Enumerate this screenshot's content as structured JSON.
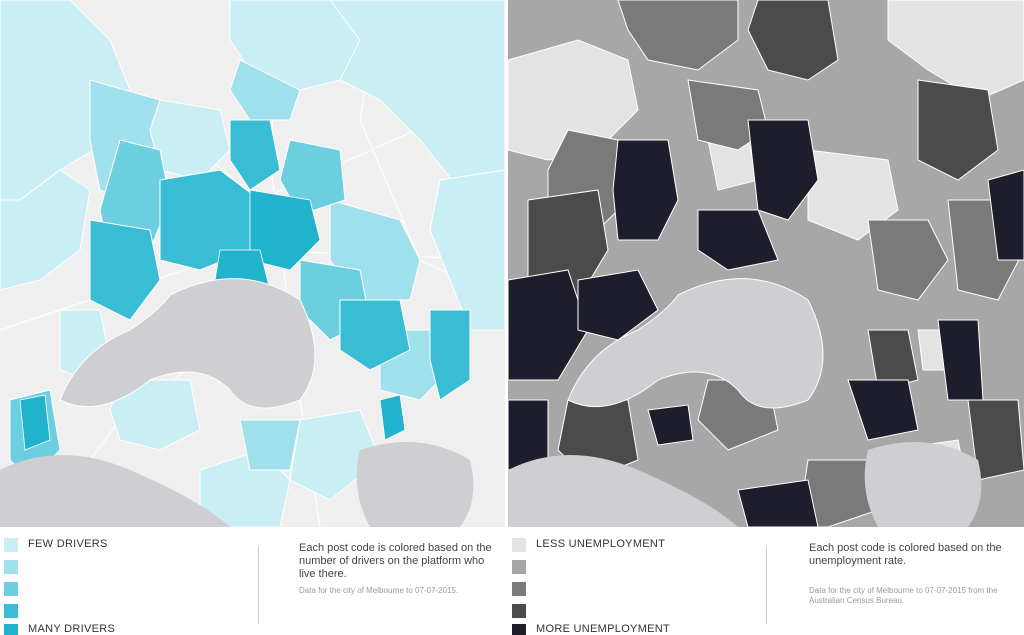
{
  "left_map": {
    "legend": {
      "low_label": "FEW DRIVERS",
      "high_label": "MANY DRIVERS",
      "colors": [
        "#c9eef4",
        "#9fe0ec",
        "#6ccfe0",
        "#38bdd4",
        "#21b3cc"
      ]
    },
    "description": "Each post code is colored based on the number of drivers on the platform who live there.",
    "source_note": "Data for the city of Melbourne to 07-07-2015."
  },
  "right_map": {
    "legend": {
      "low_label": "LESS UNEMPLOYMENT",
      "high_label": "MORE UNEMPLOYMENT",
      "colors": [
        "#e3e3e3",
        "#a7a7a7",
        "#7a7a7a",
        "#4b4b4b",
        "#1d1d2b"
      ]
    },
    "description": "Each post code is colored based on the unemployment rate.",
    "source_note": "Data for the city of Melbourne to 07-07-2015 from the Australian Census Bureau."
  },
  "map_style": {
    "background": "#ededed",
    "water": "#cfced3",
    "road": "#ffffff"
  }
}
